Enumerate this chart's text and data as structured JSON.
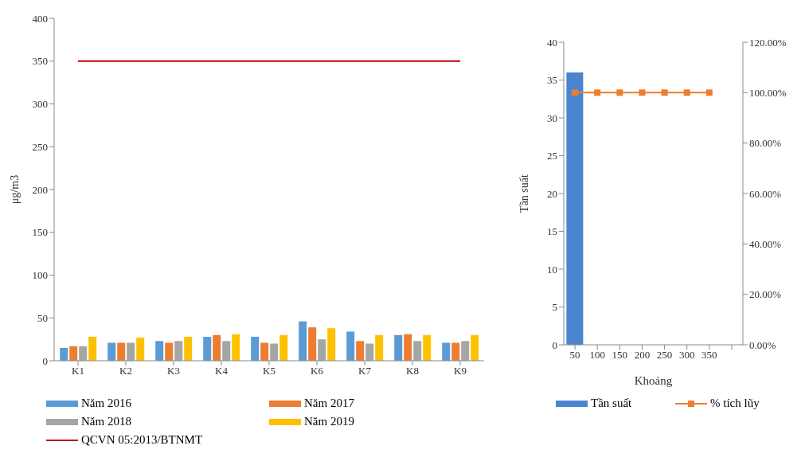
{
  "chart_data": [
    {
      "type": "bar",
      "ylabel": "μg/m3",
      "categories": [
        "K1",
        "K2",
        "K3",
        "K4",
        "K5",
        "K6",
        "K7",
        "K8",
        "K9"
      ],
      "series": [
        {
          "name": "Năm 2016",
          "color": "#5b9bd5",
          "values": [
            15,
            21,
            23,
            28,
            28,
            46,
            34,
            30,
            21
          ]
        },
        {
          "name": "Năm 2017",
          "color": "#ed7d31",
          "values": [
            17,
            21,
            21,
            30,
            21,
            39,
            23,
            31,
            21
          ]
        },
        {
          "name": "Năm 2018",
          "color": "#a5a5a5",
          "values": [
            17,
            21,
            23,
            23,
            20,
            25,
            20,
            23,
            23
          ]
        },
        {
          "name": "Năm 2019",
          "color": "#ffc000",
          "values": [
            28,
            27,
            28,
            31,
            30,
            38,
            30,
            30,
            30
          ]
        },
        {
          "name": "QCVN 05:2013/BTNMT",
          "type": "line",
          "color": "#c00000",
          "values": [
            350,
            350,
            350,
            350,
            350,
            350,
            350,
            350,
            350
          ]
        }
      ],
      "ylim": [
        0,
        400
      ],
      "yticks": [
        0,
        50,
        100,
        150,
        200,
        250,
        300,
        350,
        400
      ],
      "grid": false,
      "legend": "bottom"
    },
    {
      "type": "bar",
      "xlabel": "Khoảng",
      "ylabel": "Tần suất",
      "categories": [
        "50",
        "100",
        "150",
        "200",
        "250",
        "300",
        "350",
        null
      ],
      "series": [
        {
          "name": "Tần suất",
          "color": "#4a86d0",
          "values": [
            36,
            0,
            0,
            0,
            0,
            0,
            0,
            null
          ]
        },
        {
          "name": "% tích lũy",
          "type": "line",
          "axis": "y2",
          "color": "#ed7d31",
          "values": [
            100,
            100,
            100,
            100,
            100,
            100,
            100,
            null
          ]
        }
      ],
      "ylim": [
        0,
        40
      ],
      "yticks": [
        0,
        5,
        10,
        15,
        20,
        25,
        30,
        35,
        40
      ],
      "y2lim": [
        0,
        120
      ],
      "y2ticks": [
        {
          "value": 0,
          "label": "0.00%"
        },
        {
          "value": 20,
          "label": "20.00%"
        },
        {
          "value": 40,
          "label": "40.00%"
        },
        {
          "value": 60,
          "label": "60.00%"
        },
        {
          "value": 80,
          "label": "80.00%"
        },
        {
          "value": 100,
          "label": "100.00%"
        },
        {
          "value": 120,
          "label": "120.00%"
        }
      ],
      "marker": "square",
      "grid": false,
      "legend": "bottom"
    }
  ]
}
